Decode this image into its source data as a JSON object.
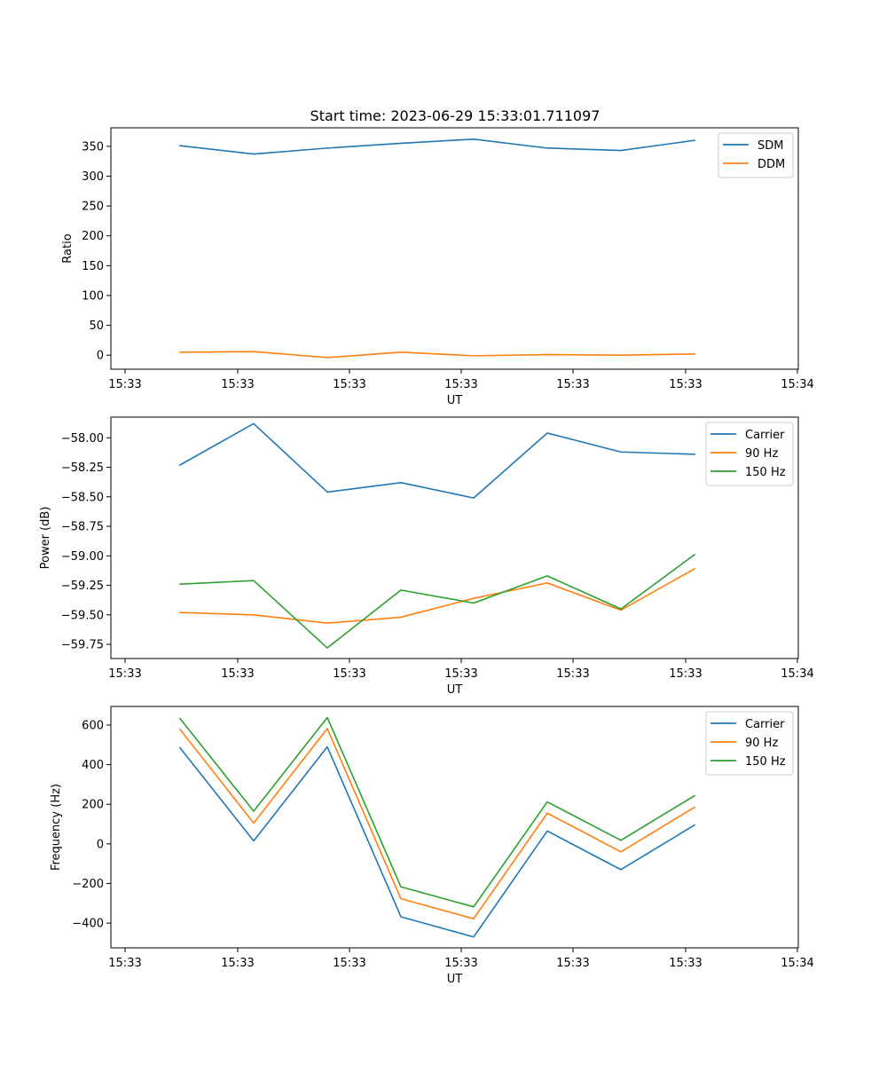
{
  "figure": {
    "title": "Start time: 2023-06-29 15:33:01.711097"
  },
  "chart_data": [
    {
      "type": "line",
      "title": "Start time: 2023-06-29 15:33:01.711097",
      "xlabel": "UT",
      "ylabel": "Ratio",
      "x_tick_labels": [
        "15:33",
        "15:33",
        "15:33",
        "15:33",
        "15:33",
        "15:33",
        "15:34"
      ],
      "y_ticks": [
        0,
        50,
        100,
        150,
        200,
        250,
        300,
        350
      ],
      "y_tick_labels": [
        "0",
        "50",
        "100",
        "150",
        "200",
        "250",
        "300",
        "350"
      ],
      "ylim": [
        -23.5,
        381
      ],
      "legend_position": "top-right",
      "series": [
        {
          "name": "SDM",
          "color": "#1f77b4",
          "values": [
            351,
            337,
            347,
            355,
            362,
            347,
            343,
            360
          ]
        },
        {
          "name": "DDM",
          "color": "#ff7f0e",
          "values": [
            5,
            6,
            -4,
            5,
            -1,
            1,
            0,
            2
          ]
        }
      ]
    },
    {
      "type": "line",
      "title": "",
      "xlabel": "UT",
      "ylabel": "Power (dB)",
      "x_tick_labels": [
        "15:33",
        "15:33",
        "15:33",
        "15:33",
        "15:33",
        "15:33",
        "15:34"
      ],
      "y_ticks": [
        -59.75,
        -59.5,
        -59.25,
        -59.0,
        -58.75,
        -58.5,
        -58.25,
        -58.0
      ],
      "y_tick_labels": [
        "−59.75",
        "−59.50",
        "−59.25",
        "−59.00",
        "−58.75",
        "−58.50",
        "−58.25",
        "−58.00"
      ],
      "ylim": [
        -59.87,
        -57.825
      ],
      "legend_position": "top-right",
      "series": [
        {
          "name": "Carrier",
          "color": "#1f77b4",
          "values": [
            -58.23,
            -57.88,
            -58.46,
            -58.38,
            -58.51,
            -57.96,
            -58.12,
            -58.14
          ]
        },
        {
          "name": "90 Hz",
          "color": "#ff7f0e",
          "values": [
            -59.48,
            -59.5,
            -59.57,
            -59.52,
            -59.36,
            -59.23,
            -59.46,
            -59.11
          ]
        },
        {
          "name": "150 Hz",
          "color": "#2ca02c",
          "values": [
            -59.24,
            -59.21,
            -59.78,
            -59.29,
            -59.4,
            -59.17,
            -59.45,
            -58.99
          ]
        }
      ]
    },
    {
      "type": "line",
      "title": "",
      "xlabel": "UT",
      "ylabel": "Frequency (Hz)",
      "x_tick_labels": [
        "15:33",
        "15:33",
        "15:33",
        "15:33",
        "15:33",
        "15:33",
        "15:34"
      ],
      "y_ticks": [
        -400,
        -200,
        0,
        200,
        400,
        600
      ],
      "y_tick_labels": [
        "−400",
        "−200",
        "0",
        "200",
        "400",
        "600"
      ],
      "ylim": [
        -525,
        694
      ],
      "legend_position": "top-right",
      "series": [
        {
          "name": "Carrier",
          "color": "#1f77b4",
          "values": [
            485,
            15,
            490,
            -368,
            -470,
            65,
            -130,
            95
          ]
        },
        {
          "name": "90 Hz",
          "color": "#ff7f0e",
          "values": [
            578,
            105,
            582,
            -277,
            -378,
            155,
            -40,
            185
          ]
        },
        {
          "name": "150 Hz",
          "color": "#2ca02c",
          "values": [
            633,
            165,
            638,
            -217,
            -318,
            212,
            18,
            243
          ]
        }
      ]
    }
  ]
}
